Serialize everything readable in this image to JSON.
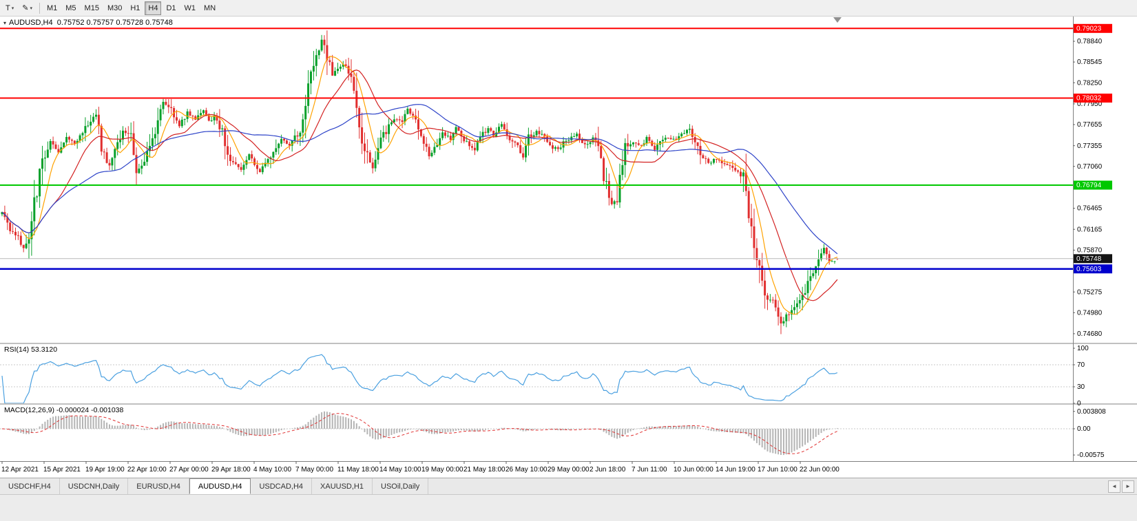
{
  "toolbar": {
    "tool_button_label": "T",
    "draw_button_icon": "✎",
    "periods": [
      "M1",
      "M5",
      "M15",
      "M30",
      "H1",
      "H4",
      "D1",
      "W1",
      "MN"
    ],
    "active_period": "H4"
  },
  "chart": {
    "title_line": "AUDUSD,H4  0.75752 0.75757 0.75728 0.75748"
  },
  "indicators": {
    "rsi_label": "RSI(14) 53.3120",
    "macd_label": "MACD(12,26,9) -0.000024 -0.001038"
  },
  "tab_bar": {
    "tabs": [
      "USDCHF,H4",
      "USDCNH,Daily",
      "EURUSD,H4",
      "AUDUSD,H4",
      "USDCAD,H4",
      "XAUUSD,H1",
      "USOil,Daily"
    ],
    "active_tab": "AUDUSD,H4",
    "scroll_left_icon": "◄",
    "scroll_right_icon": "►"
  },
  "chart_data": {
    "type": "candlestick",
    "symbol": "AUDUSD",
    "timeframe": "H4",
    "current_bar": {
      "open": 0.75752,
      "high": 0.75757,
      "low": 0.75728,
      "close": 0.75748
    },
    "colors": {
      "up": "#07a02a",
      "down": "#e12f2f",
      "ma_fast": "#ffa200",
      "ma_mid": "#d32222",
      "ma_slow": "#2d43c8",
      "rsi": "#4aa0e0",
      "macd_hist": "#b4b4b4",
      "macd_signal": "#e03030",
      "bid_line": "#b8b8b8",
      "axis_text": "#000000"
    },
    "price_axis": {
      "ticks": [
        "0.78840",
        "0.78545",
        "0.78250",
        "0.77950",
        "0.77655",
        "0.77355",
        "0.77060",
        "0.76465",
        "0.76165",
        "0.75870",
        "0.75275",
        "0.74980",
        "0.74680"
      ],
      "line_labels": [
        {
          "text": "0.79023",
          "price": 0.79023,
          "color": "#ff0000"
        },
        {
          "text": "0.78032",
          "price": 0.78032,
          "color": "#ff0000"
        },
        {
          "text": "0.76794",
          "price": 0.76794,
          "color": "#00c800"
        },
        {
          "text": "0.75748",
          "price": 0.75748,
          "color": "#141414"
        },
        {
          "text": "0.75603",
          "price": 0.75603,
          "color": "#0000cd"
        }
      ]
    },
    "hlines": [
      {
        "name": "resistance-1",
        "price": 0.79023,
        "color": "#ff0000",
        "width": 2,
        "interactable": true
      },
      {
        "name": "resistance-2",
        "price": 0.78032,
        "color": "#ff0000",
        "width": 2,
        "interactable": true
      },
      {
        "name": "support-green",
        "price": 0.76794,
        "color": "#00c800",
        "width": 2,
        "interactable": true
      },
      {
        "name": "support-blue",
        "price": 0.75603,
        "color": "#0000cd",
        "width": 2.5,
        "interactable": true
      },
      {
        "name": "bid-line",
        "price": 0.75748,
        "color": "#b8b8b8",
        "width": 1,
        "interactable": false
      }
    ],
    "time_axis": {
      "labels": [
        "12 Apr 2021",
        "15 Apr 2021",
        "19 Apr 19:00",
        "22 Apr 10:00",
        "27 Apr 00:00",
        "29 Apr 18:00",
        "4 May 10:00",
        "7 May 00:00",
        "11 May 18:00",
        "14 May 10:00",
        "19 May 00:00",
        "21 May 18:00",
        "26 May 10:00",
        "29 May 00:00",
        "2 Jun 18:00",
        "7 Jun 11:00",
        "10 Jun 00:00",
        "14 Jun 19:00",
        "17 Jun 10:00",
        "22 Jun 00:00"
      ]
    },
    "candles": {
      "count": 312,
      "anchors": [
        [
          0,
          0.7638
        ],
        [
          3,
          0.7618
        ],
        [
          6,
          0.7604
        ],
        [
          8,
          0.7591
        ],
        [
          10,
          0.76
        ],
        [
          12,
          0.7652
        ],
        [
          15,
          0.7715
        ],
        [
          18,
          0.7742
        ],
        [
          21,
          0.7728
        ],
        [
          24,
          0.7748
        ],
        [
          27,
          0.7738
        ],
        [
          30,
          0.7752
        ],
        [
          32,
          0.7768
        ],
        [
          35,
          0.7784
        ],
        [
          37,
          0.773
        ],
        [
          40,
          0.7706
        ],
        [
          43,
          0.774
        ],
        [
          45,
          0.7756
        ],
        [
          48,
          0.7752
        ],
        [
          50,
          0.77
        ],
        [
          53,
          0.7716
        ],
        [
          56,
          0.7744
        ],
        [
          58,
          0.7766
        ],
        [
          60,
          0.78
        ],
        [
          63,
          0.7788
        ],
        [
          66,
          0.7764
        ],
        [
          69,
          0.7782
        ],
        [
          72,
          0.7772
        ],
        [
          75,
          0.7786
        ],
        [
          77,
          0.777
        ],
        [
          79,
          0.7776
        ],
        [
          82,
          0.7754
        ],
        [
          84,
          0.772
        ],
        [
          86,
          0.7714
        ],
        [
          89,
          0.7702
        ],
        [
          92,
          0.7722
        ],
        [
          94,
          0.7708
        ],
        [
          96,
          0.7698
        ],
        [
          99,
          0.7716
        ],
        [
          102,
          0.7736
        ],
        [
          104,
          0.7746
        ],
        [
          107,
          0.7736
        ],
        [
          109,
          0.7748
        ],
        [
          111,
          0.7752
        ],
        [
          113,
          0.78
        ],
        [
          115,
          0.7842
        ],
        [
          118,
          0.7872
        ],
        [
          119,
          0.7888
        ],
        [
          121,
          0.7862
        ],
        [
          123,
          0.7838
        ],
        [
          126,
          0.7848
        ],
        [
          128,
          0.7852
        ],
        [
          131,
          0.782
        ],
        [
          133,
          0.7756
        ],
        [
          136,
          0.7722
        ],
        [
          138,
          0.7702
        ],
        [
          141,
          0.7744
        ],
        [
          144,
          0.7762
        ],
        [
          146,
          0.7774
        ],
        [
          149,
          0.777
        ],
        [
          151,
          0.7786
        ],
        [
          154,
          0.7768
        ],
        [
          157,
          0.7742
        ],
        [
          159,
          0.772
        ],
        [
          162,
          0.7736
        ],
        [
          164,
          0.7752
        ],
        [
          167,
          0.7746
        ],
        [
          169,
          0.7762
        ],
        [
          173,
          0.774
        ],
        [
          176,
          0.773
        ],
        [
          178,
          0.7746
        ],
        [
          181,
          0.7762
        ],
        [
          183,
          0.775
        ],
        [
          186,
          0.7766
        ],
        [
          188,
          0.775
        ],
        [
          191,
          0.774
        ],
        [
          194,
          0.7718
        ],
        [
          196,
          0.7746
        ],
        [
          199,
          0.7756
        ],
        [
          201,
          0.775
        ],
        [
          204,
          0.7736
        ],
        [
          207,
          0.773
        ],
        [
          209,
          0.7742
        ],
        [
          212,
          0.7748
        ],
        [
          214,
          0.7752
        ],
        [
          217,
          0.7736
        ],
        [
          220,
          0.7746
        ],
        [
          222,
          0.7734
        ],
        [
          224,
          0.7692
        ],
        [
          227,
          0.7652
        ],
        [
          229,
          0.7662
        ],
        [
          232,
          0.7734
        ],
        [
          235,
          0.7742
        ],
        [
          238,
          0.7734
        ],
        [
          240,
          0.7746
        ],
        [
          243,
          0.773
        ],
        [
          245,
          0.7742
        ],
        [
          248,
          0.7748
        ],
        [
          251,
          0.7744
        ],
        [
          253,
          0.7752
        ],
        [
          256,
          0.7758
        ],
        [
          258,
          0.774
        ],
        [
          261,
          0.7716
        ],
        [
          263,
          0.7712
        ],
        [
          266,
          0.7716
        ],
        [
          269,
          0.771
        ],
        [
          271,
          0.7706
        ],
        [
          274,
          0.77
        ],
        [
          276,
          0.7692
        ],
        [
          279,
          0.7612
        ],
        [
          282,
          0.756
        ],
        [
          284,
          0.7526
        ],
        [
          287,
          0.7512
        ],
        [
          290,
          0.7482
        ],
        [
          292,
          0.7492
        ],
        [
          295,
          0.7502
        ],
        [
          298,
          0.7522
        ],
        [
          301,
          0.7548
        ],
        [
          304,
          0.7576
        ],
        [
          306,
          0.7592
        ],
        [
          308,
          0.757
        ],
        [
          311,
          0.75748
        ]
      ],
      "extremes": [
        {
          "i": 119,
          "type": "high",
          "price": 0.7893
        },
        {
          "i": 290,
          "type": "low",
          "price": 0.74675
        }
      ]
    },
    "moving_averages": [
      {
        "period": 8,
        "color_key": "ma_fast"
      },
      {
        "period": 20,
        "color_key": "ma_mid"
      },
      {
        "period": 45,
        "color_key": "ma_slow"
      }
    ],
    "rsi": {
      "period": 14,
      "value": 53.312,
      "axis_labels": [
        "100",
        "70",
        "30",
        "0"
      ],
      "axis_values": [
        100,
        70,
        30,
        0
      ],
      "levels": [
        70,
        30
      ]
    },
    "macd": {
      "fast": 12,
      "slow": 26,
      "signal": 9,
      "macd_value": -2.4e-05,
      "signal_value": -0.001038,
      "axis_labels": [
        "0.003808",
        "0.00",
        "-0.00575"
      ],
      "axis_values": [
        0.003808,
        0,
        -0.00575
      ]
    }
  }
}
